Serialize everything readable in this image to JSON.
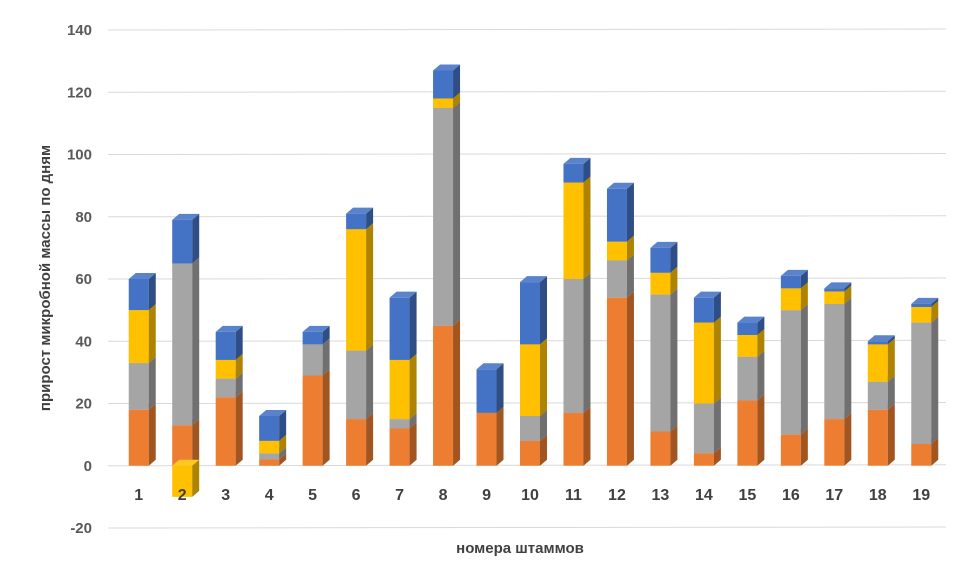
{
  "chart_data": {
    "type": "bar",
    "stacked": true,
    "three_d": true,
    "categories": [
      "1",
      "2",
      "3",
      "4",
      "5",
      "6",
      "7",
      "8",
      "9",
      "10",
      "11",
      "12",
      "13",
      "14",
      "15",
      "16",
      "17",
      "18",
      "19"
    ],
    "series": [
      {
        "color": "#ED7D31",
        "values": [
          18,
          13,
          22,
          2,
          29,
          15,
          12,
          45,
          17,
          8,
          17,
          54,
          11,
          4,
          21,
          10,
          15,
          18,
          7
        ]
      },
      {
        "color": "#A5A5A5",
        "values": [
          15,
          52,
          6,
          2,
          10,
          22,
          3,
          70,
          0,
          8,
          43,
          12,
          44,
          16,
          14,
          40,
          37,
          9,
          39
        ]
      },
      {
        "color": "#FFC000",
        "values": [
          17,
          -10,
          6,
          4,
          0,
          39,
          19,
          3,
          0,
          23,
          31,
          6,
          7,
          26,
          7,
          7,
          4,
          12,
          5
        ]
      },
      {
        "color": "#4472C4",
        "values": [
          10,
          14,
          9,
          8,
          4,
          5,
          20,
          9,
          14,
          20,
          6,
          17,
          8,
          8,
          4,
          4,
          1,
          1,
          1
        ]
      }
    ],
    "ylim": [
      -20,
      140
    ],
    "yticks": [
      -20,
      0,
      20,
      40,
      60,
      80,
      100,
      120,
      140
    ],
    "ylabel": "прирост микробной массы по дням",
    "xlabel": "номера штаммов",
    "grid": true,
    "legend": "none"
  }
}
